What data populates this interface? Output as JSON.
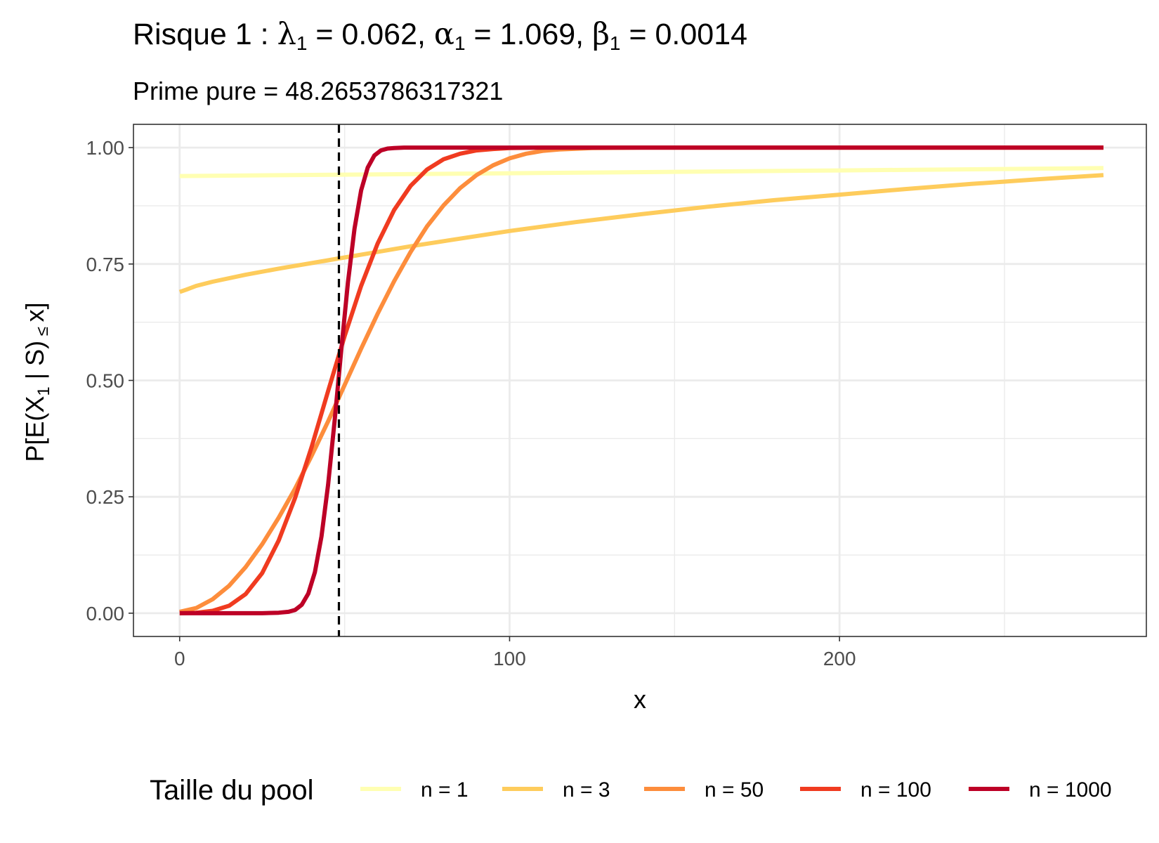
{
  "title": {
    "prefix": "Risque 1 : ",
    "lambda": "λ",
    "lambda_sub": "1",
    "lambda_val": " = 0.062, ",
    "alpha": "α",
    "alpha_sub": "1",
    "alpha_val": " = 1.069, ",
    "beta": "β",
    "beta_sub": "1",
    "beta_val": " = 0.0014"
  },
  "subtitle": "Prime pure = 48.2653786317321",
  "ylabel": {
    "main_a": "P[E(X",
    "sub": "1",
    "main_b": " | S)",
    "leq": " ≤ ",
    "main_c": "x]"
  },
  "legend_title": "Taille du pool",
  "colors": {
    "n1": "#ffffb2",
    "n3": "#fecc5c",
    "n50": "#fd8d3c",
    "n100": "#f03b20",
    "n1000": "#bd0026",
    "vline": "#000000",
    "grid": "#ebebeb",
    "panel_border": "#333333"
  },
  "chart_data": {
    "type": "line",
    "xlabel": "x",
    "ylabel": "P[E(X1 | S) ≤ x]",
    "xlim": [
      -14,
      293
    ],
    "ylim": [
      -0.05,
      1.05
    ],
    "xticks": [
      0,
      100,
      200
    ],
    "xtick_labels": [
      "0",
      "100",
      "200"
    ],
    "yticks": [
      0,
      0.25,
      0.5,
      0.75,
      1
    ],
    "ytick_labels": [
      "0.00",
      "0.25",
      "0.50",
      "0.75",
      "1.00"
    ],
    "grid": true,
    "legend_position": "bottom",
    "vline": {
      "x": 48.27,
      "style": "dashed"
    },
    "series": [
      {
        "name": "n = 1",
        "color_key": "n1",
        "x": [
          0,
          50,
          100,
          150,
          200,
          280
        ],
        "y": [
          0.939,
          0.942,
          0.945,
          0.948,
          0.951,
          0.956
        ]
      },
      {
        "name": "n = 3",
        "color_key": "n3",
        "x": [
          0,
          2,
          5,
          10,
          20,
          30,
          40,
          50,
          60,
          70,
          80,
          100,
          120,
          140,
          160,
          180,
          200,
          220,
          240,
          260,
          280
        ],
        "y": [
          0.69,
          0.695,
          0.703,
          0.712,
          0.727,
          0.74,
          0.752,
          0.764,
          0.776,
          0.788,
          0.799,
          0.821,
          0.84,
          0.857,
          0.873,
          0.887,
          0.899,
          0.911,
          0.922,
          0.932,
          0.941
        ]
      },
      {
        "name": "n = 50",
        "color_key": "n50",
        "x": [
          0,
          5,
          10,
          15,
          20,
          25,
          30,
          35,
          40,
          45,
          50,
          55,
          60,
          65,
          70,
          75,
          80,
          85,
          90,
          95,
          100,
          105,
          110,
          115,
          125,
          140,
          200,
          280
        ],
        "y": [
          0.003,
          0.011,
          0.03,
          0.059,
          0.099,
          0.148,
          0.205,
          0.268,
          0.338,
          0.412,
          0.49,
          0.568,
          0.643,
          0.713,
          0.776,
          0.831,
          0.876,
          0.913,
          0.941,
          0.962,
          0.977,
          0.987,
          0.993,
          0.996,
          0.999,
          1.0,
          1.0,
          1.0
        ]
      },
      {
        "name": "n = 100",
        "color_key": "n100",
        "x": [
          0,
          5,
          10,
          15,
          20,
          25,
          30,
          35,
          40,
          45,
          50,
          55,
          60,
          65,
          70,
          75,
          80,
          85,
          90,
          95,
          100,
          110,
          124,
          200,
          280
        ],
        "y": [
          0.0,
          0.001,
          0.005,
          0.016,
          0.041,
          0.086,
          0.156,
          0.248,
          0.357,
          0.477,
          0.595,
          0.703,
          0.794,
          0.866,
          0.918,
          0.953,
          0.975,
          0.987,
          0.994,
          0.997,
          0.999,
          1.0,
          1.0,
          1.0,
          1.0
        ]
      },
      {
        "name": "n = 1000",
        "color_key": "n1000",
        "x": [
          0,
          10,
          20,
          25,
          30,
          33,
          35,
          37,
          39,
          41,
          43,
          45,
          47,
          49,
          51,
          53,
          55,
          57,
          59,
          61,
          63,
          65,
          68,
          72,
          80,
          120,
          200,
          280
        ],
        "y": [
          0.0,
          0.0,
          0.0,
          0.0,
          0.001,
          0.003,
          0.007,
          0.018,
          0.042,
          0.088,
          0.165,
          0.276,
          0.415,
          0.566,
          0.71,
          0.826,
          0.908,
          0.957,
          0.983,
          0.994,
          0.998,
          0.999,
          1.0,
          1.0,
          1.0,
          1.0,
          1.0,
          1.0
        ]
      }
    ]
  }
}
